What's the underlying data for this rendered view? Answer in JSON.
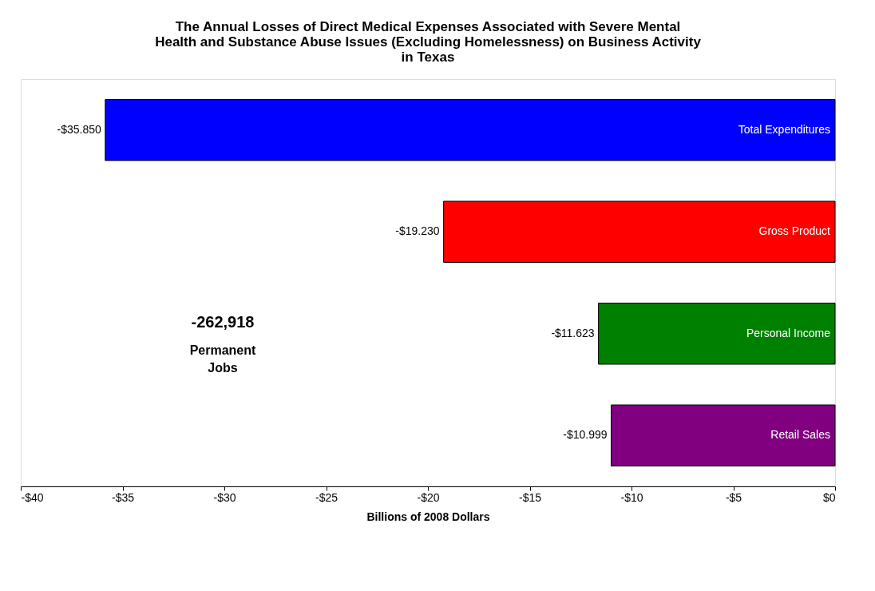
{
  "chart_data": {
    "type": "bar",
    "orientation": "horizontal",
    "title": "The Annual Losses of Direct Medical Expenses Associated with Severe Mental Health and Substance Abuse Issues (Excluding Homelessness) on Business Activity in Texas",
    "xlabel": "Billions of 2008 Dollars",
    "categories": [
      "Total Expenditures",
      "Gross Product",
      "Personal Income",
      "Retail Sales"
    ],
    "values": [
      -35.85,
      -19.23,
      -11.623,
      -10.999
    ],
    "value_labels": [
      "-$35.850",
      "-$19.230",
      "-$11.623",
      "-$10.999"
    ],
    "colors": [
      "#0000ff",
      "#ff0000",
      "#008000",
      "#800080"
    ],
    "xlim": [
      -40,
      0
    ],
    "xticks": [
      {
        "value": -40,
        "label": "-$40"
      },
      {
        "value": -35,
        "label": "-$35"
      },
      {
        "value": -30,
        "label": "-$30"
      },
      {
        "value": -25,
        "label": "-$25"
      },
      {
        "value": -20,
        "label": "-$20"
      },
      {
        "value": -15,
        "label": "-$15"
      },
      {
        "value": -10,
        "label": "-$10"
      },
      {
        "value": -5,
        "label": "-$5"
      },
      {
        "value": 0,
        "label": "$0"
      }
    ],
    "annotations": [
      "-262,918 Permanent Jobs"
    ],
    "grid": false
  }
}
